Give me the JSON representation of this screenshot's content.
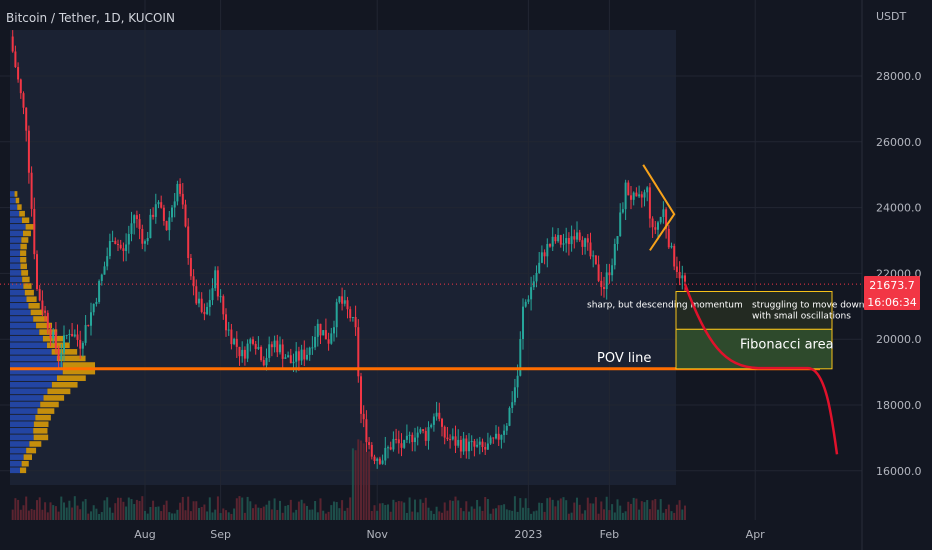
{
  "header": {
    "symbol": "Bitcoin / Tether, 1D, KUCOIN",
    "currency": "USDT"
  },
  "price_tag": {
    "price": "21673.7",
    "countdown": "16:06:34"
  },
  "colors": {
    "background": "#131722",
    "up": "#26a69a",
    "down": "#f23645",
    "pov": "#ff6d00",
    "fib_border": "#f7c21a",
    "annotation_box": "#2a3a2a",
    "projection": "#e0112b"
  },
  "chart_data": {
    "type": "candlestick",
    "title": "Bitcoin / Tether, 1D, KUCOIN",
    "ylabel": "USDT",
    "ylim": [
      15000,
      29500
    ],
    "y_ticks": [
      16000,
      18000,
      20000,
      22000,
      24000,
      26000,
      28000
    ],
    "y_tick_labels": [
      "16000.0",
      "18000.0",
      "20000.0",
      "22000.0",
      "24000.0",
      "26000.0",
      "28000.0"
    ],
    "x_tick_labels": [
      "Aug",
      "Sep",
      "Nov",
      "2023",
      "Feb",
      "Apr"
    ],
    "last_price": 21673.7,
    "price_path": [
      [
        0,
        29200
      ],
      [
        6,
        26500
      ],
      [
        10,
        21500
      ],
      [
        14,
        20500
      ],
      [
        18,
        19500
      ],
      [
        22,
        20300
      ],
      [
        26,
        19900
      ],
      [
        30,
        20800
      ],
      [
        34,
        21900
      ],
      [
        38,
        23200
      ],
      [
        42,
        22600
      ],
      [
        46,
        23800
      ],
      [
        50,
        22900
      ],
      [
        54,
        24200
      ],
      [
        58,
        23400
      ],
      [
        62,
        24700
      ],
      [
        64,
        23900
      ],
      [
        68,
        21400
      ],
      [
        72,
        20600
      ],
      [
        76,
        21900
      ],
      [
        80,
        20400
      ],
      [
        86,
        19500
      ],
      [
        90,
        20100
      ],
      [
        94,
        19400
      ],
      [
        98,
        19900
      ],
      [
        104,
        19300
      ],
      [
        110,
        19600
      ],
      [
        114,
        20400
      ],
      [
        118,
        20000
      ],
      [
        122,
        21200
      ],
      [
        126,
        20700
      ],
      [
        128,
        20200
      ],
      [
        130,
        17700
      ],
      [
        134,
        16500
      ],
      [
        138,
        16400
      ],
      [
        142,
        16900
      ],
      [
        146,
        16700
      ],
      [
        150,
        17200
      ],
      [
        154,
        17100
      ],
      [
        158,
        17900
      ],
      [
        160,
        17100
      ],
      [
        164,
        16900
      ],
      [
        168,
        16800
      ],
      [
        172,
        16700
      ],
      [
        176,
        16650
      ],
      [
        180,
        16900
      ],
      [
        184,
        17500
      ],
      [
        188,
        18900
      ],
      [
        190,
        20900
      ],
      [
        194,
        21800
      ],
      [
        198,
        22700
      ],
      [
        202,
        23000
      ],
      [
        206,
        22900
      ],
      [
        210,
        23400
      ],
      [
        214,
        22700
      ],
      [
        218,
        21900
      ],
      [
        220,
        21600
      ],
      [
        224,
        22700
      ],
      [
        228,
        24600
      ],
      [
        232,
        24100
      ],
      [
        236,
        24500
      ],
      [
        238,
        23200
      ],
      [
        242,
        23900
      ],
      [
        245,
        22600
      ],
      [
        248,
        22000
      ],
      [
        250,
        21674
      ]
    ],
    "volume_profile_poc": 19100,
    "annotations": {
      "pov_line": {
        "label": "POV line",
        "price": 19100
      },
      "fibonacci": {
        "label": "Fibonacci area",
        "top": 20300,
        "bottom": 19100
      },
      "note_left": "sharp, but descending momentum",
      "note_right_1": "struggling to move down",
      "note_right_2": "with small oscillations",
      "note_box": {
        "top": 21450,
        "bottom": 20300
      },
      "triangle": {
        "start_day": 236,
        "end_day": 246,
        "top": 25300,
        "bottom": 22700
      },
      "projection_end_price": 16500
    },
    "grid": true,
    "legend": "none"
  }
}
